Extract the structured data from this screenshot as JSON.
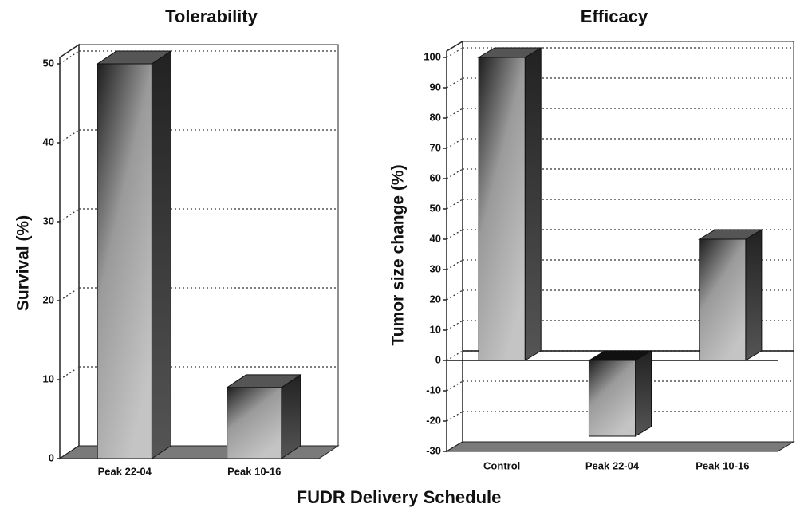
{
  "chart_data": [
    {
      "type": "bar3d",
      "title": "Tolerability",
      "ylabel": "Survival (%)",
      "categories": [
        "Peak 22-04",
        "Peak 10-16"
      ],
      "values": [
        50,
        9
      ],
      "ylim": [
        0,
        50
      ],
      "yticks": [
        0,
        10,
        20,
        30,
        40,
        50
      ],
      "grid": true,
      "color": "#888888"
    },
    {
      "type": "bar3d",
      "title": "Efficacy",
      "ylabel": "Tumor size change (%)",
      "categories": [
        "Control",
        "Peak 22-04",
        "Peak 10-16"
      ],
      "values": [
        100,
        -25,
        40
      ],
      "ylim": [
        -30,
        100
      ],
      "yticks": [
        -30,
        -20,
        -10,
        0,
        10,
        20,
        30,
        40,
        50,
        60,
        70,
        80,
        90,
        100
      ],
      "grid": true,
      "color": "#888888"
    }
  ],
  "xlabel": "FUDR Delivery Schedule"
}
